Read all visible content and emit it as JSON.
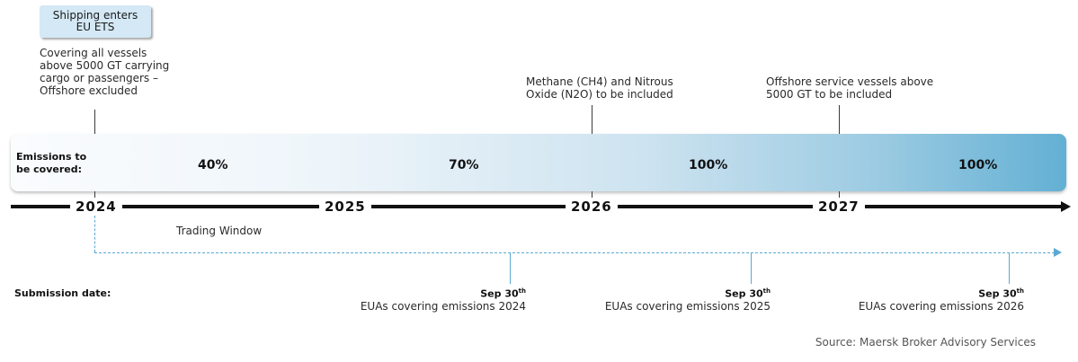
{
  "top_callout": {
    "badge_line1": "Shipping enters",
    "badge_line2": "EU ETS",
    "notes": [
      "Covering all vessels",
      "above 5000 GT carrying",
      "cargo or passengers  –",
      "Offshore excluded"
    ]
  },
  "callout_2026": [
    "Methane (CH4) and Nitrous",
    "Oxide (N2O) to be included"
  ],
  "callout_2027": [
    "Offshore service vessels above",
    "5000 GT to be included"
  ],
  "band": {
    "label_line1": "Emissions to",
    "label_line2": "be covered:",
    "percentages": [
      "40%",
      "70%",
      "100%",
      "100%"
    ]
  },
  "timeline": {
    "years": [
      "2024",
      "2025",
      "2026",
      "2027"
    ],
    "trading_window": "Trading Window"
  },
  "submission": {
    "label": "Submission date:",
    "deadlines": [
      {
        "date": "Sep 30",
        "suffix": "th",
        "text": "EUAs covering emissions  2024"
      },
      {
        "date": "Sep 30",
        "suffix": "th",
        "text": "EUAs covering emissions  2025"
      },
      {
        "date": "Sep 30",
        "suffix": "th",
        "text": "EUAs covering emissions  2026"
      }
    ]
  },
  "source": "Source: Maersk Broker Advisory Services",
  "colors": {
    "band_start": "#fafcfe",
    "band_end": "#63b0d4",
    "badge": "#d4e8f5",
    "dashed_line": "#5aa9d3",
    "axis": "#111111"
  }
}
